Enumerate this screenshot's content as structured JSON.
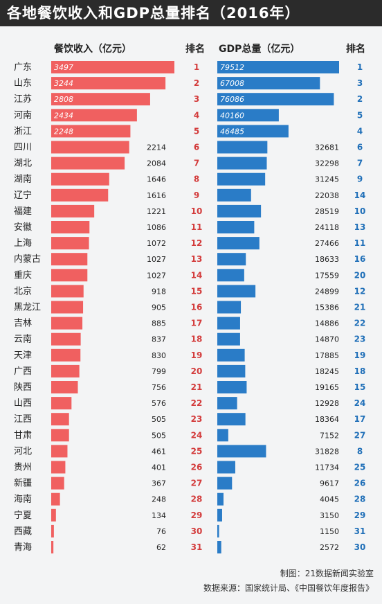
{
  "title": "各地餐饮收入和GDP总量排名（2016年）",
  "headers": {
    "revenue": "餐饮收入（亿元）",
    "revenue_rank": "排名",
    "gdp": "GDP总量（亿元）",
    "gdp_rank": "排名"
  },
  "footer": {
    "credit": "制图：21数据新闻实验室",
    "source": "数据来源：国家统计局、《中国餐饮年度报告》"
  },
  "colors": {
    "revenue_bar": "#f06060",
    "gdp_bar": "#2a7cc7",
    "revenue_rank_text": "#d33b3b",
    "gdp_rank_text": "#1f6fb8"
  },
  "chart_data": [
    {
      "type": "bar",
      "orientation": "horizontal",
      "title": "餐饮收入（亿元）",
      "categories": [
        "广东",
        "山东",
        "江苏",
        "河南",
        "浙江",
        "四川",
        "湖北",
        "湖南",
        "辽宁",
        "福建",
        "安徽",
        "上海",
        "内蒙古",
        "重庆",
        "北京",
        "黑龙江",
        "吉林",
        "云南",
        "天津",
        "广西",
        "陕西",
        "山西",
        "江西",
        "甘肃",
        "河北",
        "贵州",
        "新疆",
        "海南",
        "宁夏",
        "西藏",
        "青海"
      ],
      "values": [
        3497,
        3244,
        2808,
        2434,
        2248,
        2214,
        2084,
        1646,
        1616,
        1221,
        1086,
        1072,
        1027,
        1027,
        918,
        905,
        885,
        837,
        830,
        799,
        756,
        576,
        505,
        505,
        461,
        401,
        367,
        248,
        134,
        76,
        62
      ],
      "ranks": [
        1,
        2,
        3,
        4,
        5,
        6,
        7,
        8,
        9,
        10,
        11,
        12,
        13,
        14,
        15,
        16,
        17,
        18,
        19,
        20,
        21,
        22,
        23,
        24,
        25,
        26,
        27,
        28,
        29,
        30,
        31
      ]
    },
    {
      "type": "bar",
      "orientation": "horizontal",
      "title": "GDP总量（亿元）",
      "categories": [
        "广东",
        "山东",
        "江苏",
        "河南",
        "浙江",
        "四川",
        "湖北",
        "湖南",
        "辽宁",
        "福建",
        "安徽",
        "上海",
        "内蒙古",
        "重庆",
        "北京",
        "黑龙江",
        "吉林",
        "云南",
        "天津",
        "广西",
        "陕西",
        "山西",
        "江西",
        "甘肃",
        "河北",
        "贵州",
        "新疆",
        "海南",
        "宁夏",
        "西藏",
        "青海"
      ],
      "values": [
        79512,
        67008,
        76086,
        40160,
        46485,
        32681,
        32298,
        31245,
        22038,
        28519,
        24118,
        27466,
        18633,
        17559,
        24899,
        15386,
        14886,
        14870,
        17885,
        18245,
        19165,
        12928,
        18364,
        7152,
        31828,
        11734,
        9617,
        4045,
        3150,
        1150,
        2572
      ],
      "ranks": [
        1,
        3,
        2,
        5,
        4,
        6,
        7,
        9,
        14,
        10,
        13,
        11,
        16,
        20,
        12,
        21,
        22,
        23,
        19,
        18,
        15,
        24,
        17,
        27,
        8,
        25,
        26,
        28,
        29,
        31,
        30
      ]
    }
  ]
}
